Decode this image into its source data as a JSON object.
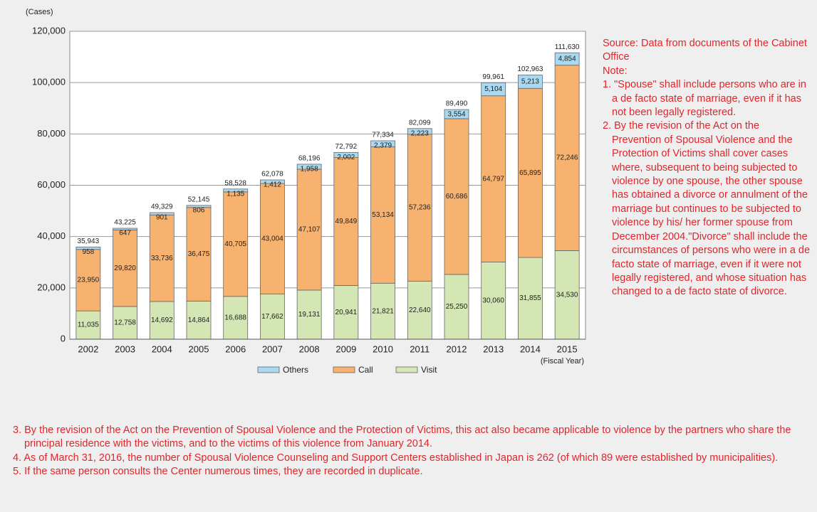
{
  "chart_data": {
    "type": "stacked_bar",
    "y_label": "(Cases)",
    "x_label": "(Fiscal Year)",
    "categories": [
      "2002",
      "2003",
      "2004",
      "2005",
      "2006",
      "2007",
      "2008",
      "2009",
      "2010",
      "2011",
      "2012",
      "2013",
      "2014",
      "2015"
    ],
    "series": [
      {
        "name": "Others",
        "color": "#a9d8f0",
        "values": [
          958,
          647,
          901,
          806,
          1135,
          1412,
          1958,
          2002,
          2379,
          2223,
          3554,
          5104,
          5213,
          4854
        ],
        "value_labels": [
          "958",
          "647",
          "901",
          "806",
          "1,135",
          "1,412",
          "1,958",
          "2,002",
          "2,379",
          "2,223",
          "3,554",
          "5,104",
          "5,213",
          "4,854"
        ]
      },
      {
        "name": "Call",
        "color": "#f8b26f",
        "values": [
          23950,
          29820,
          33736,
          36475,
          40705,
          43004,
          47107,
          49849,
          53134,
          57236,
          60686,
          64797,
          65895,
          72246
        ],
        "value_labels": [
          "23,950",
          "29,820",
          "33,736",
          "36,475",
          "40,705",
          "43,004",
          "47,107",
          "49,849",
          "53,134",
          "57,236",
          "60,686",
          "64,797",
          "65,895",
          "72,246"
        ]
      },
      {
        "name": "Visit",
        "color": "#d4e6b4",
        "values": [
          11035,
          12758,
          14692,
          14864,
          16688,
          17662,
          19131,
          20941,
          21821,
          22640,
          25250,
          30060,
          31855,
          34530
        ],
        "value_labels": [
          "11,035",
          "12,758",
          "14,692",
          "14,864",
          "16,688",
          "17,662",
          "19,131",
          "20,941",
          "21,821",
          "22,640",
          "25,250",
          "30,060",
          "31,855",
          "34,530"
        ]
      }
    ],
    "totals": {
      "values": [
        35943,
        43225,
        49329,
        52145,
        58528,
        62078,
        68196,
        72792,
        77334,
        82099,
        89490,
        99961,
        102963,
        111630
      ],
      "value_labels": [
        "35,943",
        "43,225",
        "49,329",
        "52,145",
        "58,528",
        "62,078",
        "68,196",
        "72,792",
        "77,334",
        "82,099",
        "89,490",
        "99,961",
        "102,963",
        "111,630"
      ]
    },
    "ylim": [
      0,
      120000
    ],
    "yticks": [
      0,
      {
        "value": 20000,
        "label": "20,000"
      },
      {
        "value": 40000,
        "label": "40,000"
      },
      {
        "value": 60000,
        "label": "60,000"
      },
      {
        "value": 80000,
        "label": "80,000"
      },
      {
        "value": 100000,
        "label": "100,000"
      },
      {
        "value": 120000,
        "label": "120,000"
      }
    ],
    "grid": true,
    "legend": "bottom"
  },
  "source": "Source: Data from documents of the Cabinet Office",
  "note_heading": "Note:",
  "notes": [
    "1. \"Spouse\" shall include persons who are in a de facto state of marriage, even if it has not been legally registered.",
    "2. By the revision of the Act on the Prevention of Spousal Violence and the Protection of Victims shall cover cases where, subsequent to being subjected to violence by one spouse, the other spouse has obtained a divorce or annulment of the marriage but continues to be subjected to violence by his/ her former spouse from December 2004.\"Divorce\" shall include the circumstances of persons who were in a de facto state of marriage, even if it were not legally registered, and whose situation has changed to a de facto state of divorce.",
    "3. By the revision of the Act on the Prevention of Spousal Violence and the Protection of Victims, this act also became applicable to violence by the partners who share the principal residence with the victims, and to the victims of this violence from January 2014.",
    "4. As of March 31, 2016, the number of Spousal Violence Counseling and Support Centers established in Japan is 262 (of which 89 were established by municipalities).",
    "5. If the same person consults the Center numerous times, they are recorded in duplicate."
  ]
}
